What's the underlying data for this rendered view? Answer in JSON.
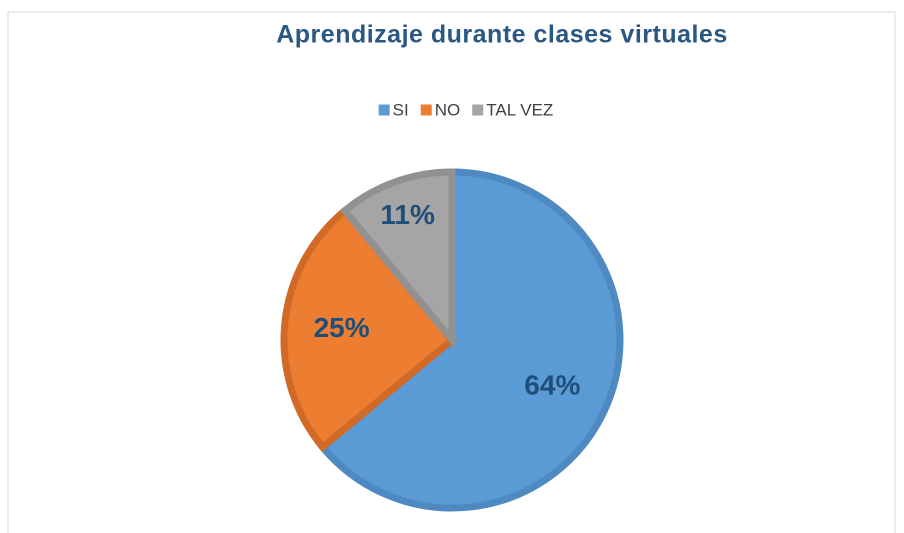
{
  "chart_data": {
    "type": "pie",
    "title": "Aprendizaje durante clases virtuales",
    "categories": [
      "SI",
      "NO",
      "TAL VEZ"
    ],
    "values": [
      64,
      25,
      11
    ],
    "value_labels": [
      "64%",
      "25%",
      "11%"
    ],
    "colors": [
      "#5b9bd5",
      "#ed7d31",
      "#a5a5a5"
    ],
    "border_colors": [
      "#4f89c2",
      "#d06a26",
      "#919191"
    ],
    "legend": "top"
  }
}
